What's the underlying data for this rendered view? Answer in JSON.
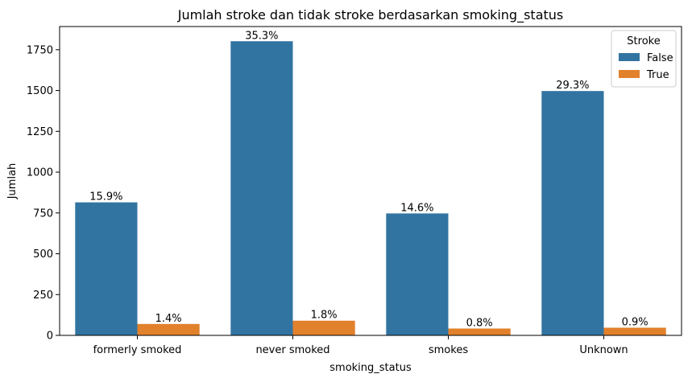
{
  "chart_data": {
    "type": "bar",
    "title": "Jumlah stroke dan tidak stroke berdasarkan smoking_status",
    "xlabel": "smoking_status",
    "ylabel": "Jumlah",
    "categories": [
      "formerly smoked",
      "never smoked",
      "smokes",
      "Unknown"
    ],
    "series": [
      {
        "name": "False",
        "color": "#3274a1",
        "values": [
          815,
          1802,
          747,
          1497
        ],
        "labels": [
          "15.9%",
          "35.3%",
          "14.6%",
          "29.3%"
        ]
      },
      {
        "name": "True",
        "color": "#e1812c",
        "values": [
          70,
          90,
          42,
          47
        ],
        "labels": [
          "1.4%",
          "1.8%",
          "0.8%",
          "0.9%"
        ]
      }
    ],
    "yticks": [
      0,
      250,
      500,
      750,
      1000,
      1250,
      1500,
      1750
    ],
    "ylim": [
      0,
      1892
    ],
    "legend": {
      "title": "Stroke",
      "placement": "top-right"
    },
    "grid": false
  }
}
